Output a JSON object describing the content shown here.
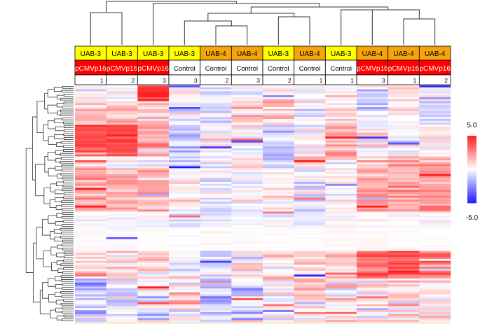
{
  "chart_data": {
    "type": "heatmap",
    "columns": [
      {
        "cell_line": "UAB-3",
        "treatment": "pCMVp16",
        "replicate": "1"
      },
      {
        "cell_line": "UAB-3",
        "treatment": "pCMVp16",
        "replicate": "2"
      },
      {
        "cell_line": "UAB-3",
        "treatment": "pCMVp16",
        "replicate": "3"
      },
      {
        "cell_line": "UAB-3",
        "treatment": "Control",
        "replicate": "3"
      },
      {
        "cell_line": "UAB-4",
        "treatment": "Control",
        "replicate": "2"
      },
      {
        "cell_line": "UAB-4",
        "treatment": "Control",
        "replicate": "3"
      },
      {
        "cell_line": "UAB-3",
        "treatment": "Control",
        "replicate": "2"
      },
      {
        "cell_line": "UAB-4",
        "treatment": "Control",
        "replicate": "1"
      },
      {
        "cell_line": "UAB-3",
        "treatment": "Control",
        "replicate": "1"
      },
      {
        "cell_line": "UAB-4",
        "treatment": "pCMVp16",
        "replicate": "3"
      },
      {
        "cell_line": "UAB-4",
        "treatment": "pCMVp16",
        "replicate": "1"
      },
      {
        "cell_line": "UAB-4",
        "treatment": "pCMVp16",
        "replicate": "2"
      }
    ],
    "row_count": 120,
    "value_range": [
      -5.0,
      5.0
    ],
    "color_scale": {
      "low": "#1e1eff",
      "mid": "#ffffff",
      "high": "#ff1e1e"
    },
    "legend": {
      "max_label": "5.0",
      "min_label": "-5.0"
    },
    "header_colors": {
      "UAB-3": "#ffff00",
      "UAB-4": "#f5a40a",
      "pCMVp16": "#ff0000",
      "Control": "#ffffff"
    },
    "column_order_note": "columns ordered as shown by hierarchical clustering dendrogram",
    "values": []
  }
}
